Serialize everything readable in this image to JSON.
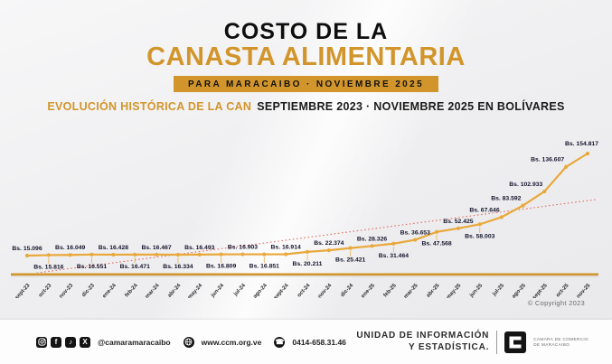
{
  "header": {
    "title_line1": "COSTO DE LA",
    "title_line2": "CANASTA ALIMENTARIA",
    "banner": "PARA MARACAIBO · NOVIEMBRE 2025",
    "subtitle_highlight": "EVOLUCIÓN HISTÓRICA DE LA CAN",
    "subtitle_rest": "SEPTIEMBRE 2023 · NOVIEMBRE 2025 EN BOLÍVARES"
  },
  "chart_data": {
    "type": "line",
    "title": "Costo de la Canasta Alimentaria para Maracaibo (CAN)",
    "xlabel": "",
    "ylabel": "Bolívares",
    "legend": false,
    "grid": false,
    "value_prefix": "Bs.",
    "categories": [
      "sept-23",
      "oct-23",
      "nov-23",
      "dic-23",
      "ene-24",
      "feb-24",
      "mar-24",
      "abr-24",
      "may-24",
      "jun-24",
      "jul-24",
      "ago-24",
      "sept-24",
      "oct-24",
      "nov-24",
      "dic-24",
      "ene-25",
      "feb-25",
      "mar-25",
      "abr-25",
      "may-25",
      "jun-25",
      "jul-25",
      "ago-25",
      "sept-25",
      "oct-25",
      "nov-25"
    ],
    "values": [
      15096,
      15816,
      16049,
      16551,
      16428,
      16471,
      16467,
      16334,
      16493,
      16809,
      16903,
      16851,
      16914,
      20211,
      22374,
      25421,
      28326,
      31464,
      36653,
      47568,
      52425,
      58003,
      67646,
      83592,
      102933,
      136607,
      154817
    ],
    "ylim": [
      0,
      160000
    ],
    "trendline": "linear, red dotted",
    "colors": {
      "line": "#e9a83b",
      "trend": "#e0564b",
      "label": "#14142b",
      "axis": "#d2952b",
      "tick": "#2b2b2b"
    }
  },
  "chart_note": "© Copyright 2023",
  "footer": {
    "social_handle": "@camaramaracaibo",
    "website": "www.ccm.org.ve",
    "phone": "0414-658.31.46",
    "icons": {
      "instagram": "instagram",
      "facebook": "f",
      "tiktok": "♪",
      "x": "X",
      "globe": "globe",
      "phone": "☎"
    },
    "unit_line1": "UNIDAD DE INFORMACIÓN",
    "unit_line2": "Y ESTADÍSTICA.",
    "logo_caption_line1": "CÁMARA DE COMERCIO",
    "logo_caption_line2": "DE MARACAIBO"
  }
}
